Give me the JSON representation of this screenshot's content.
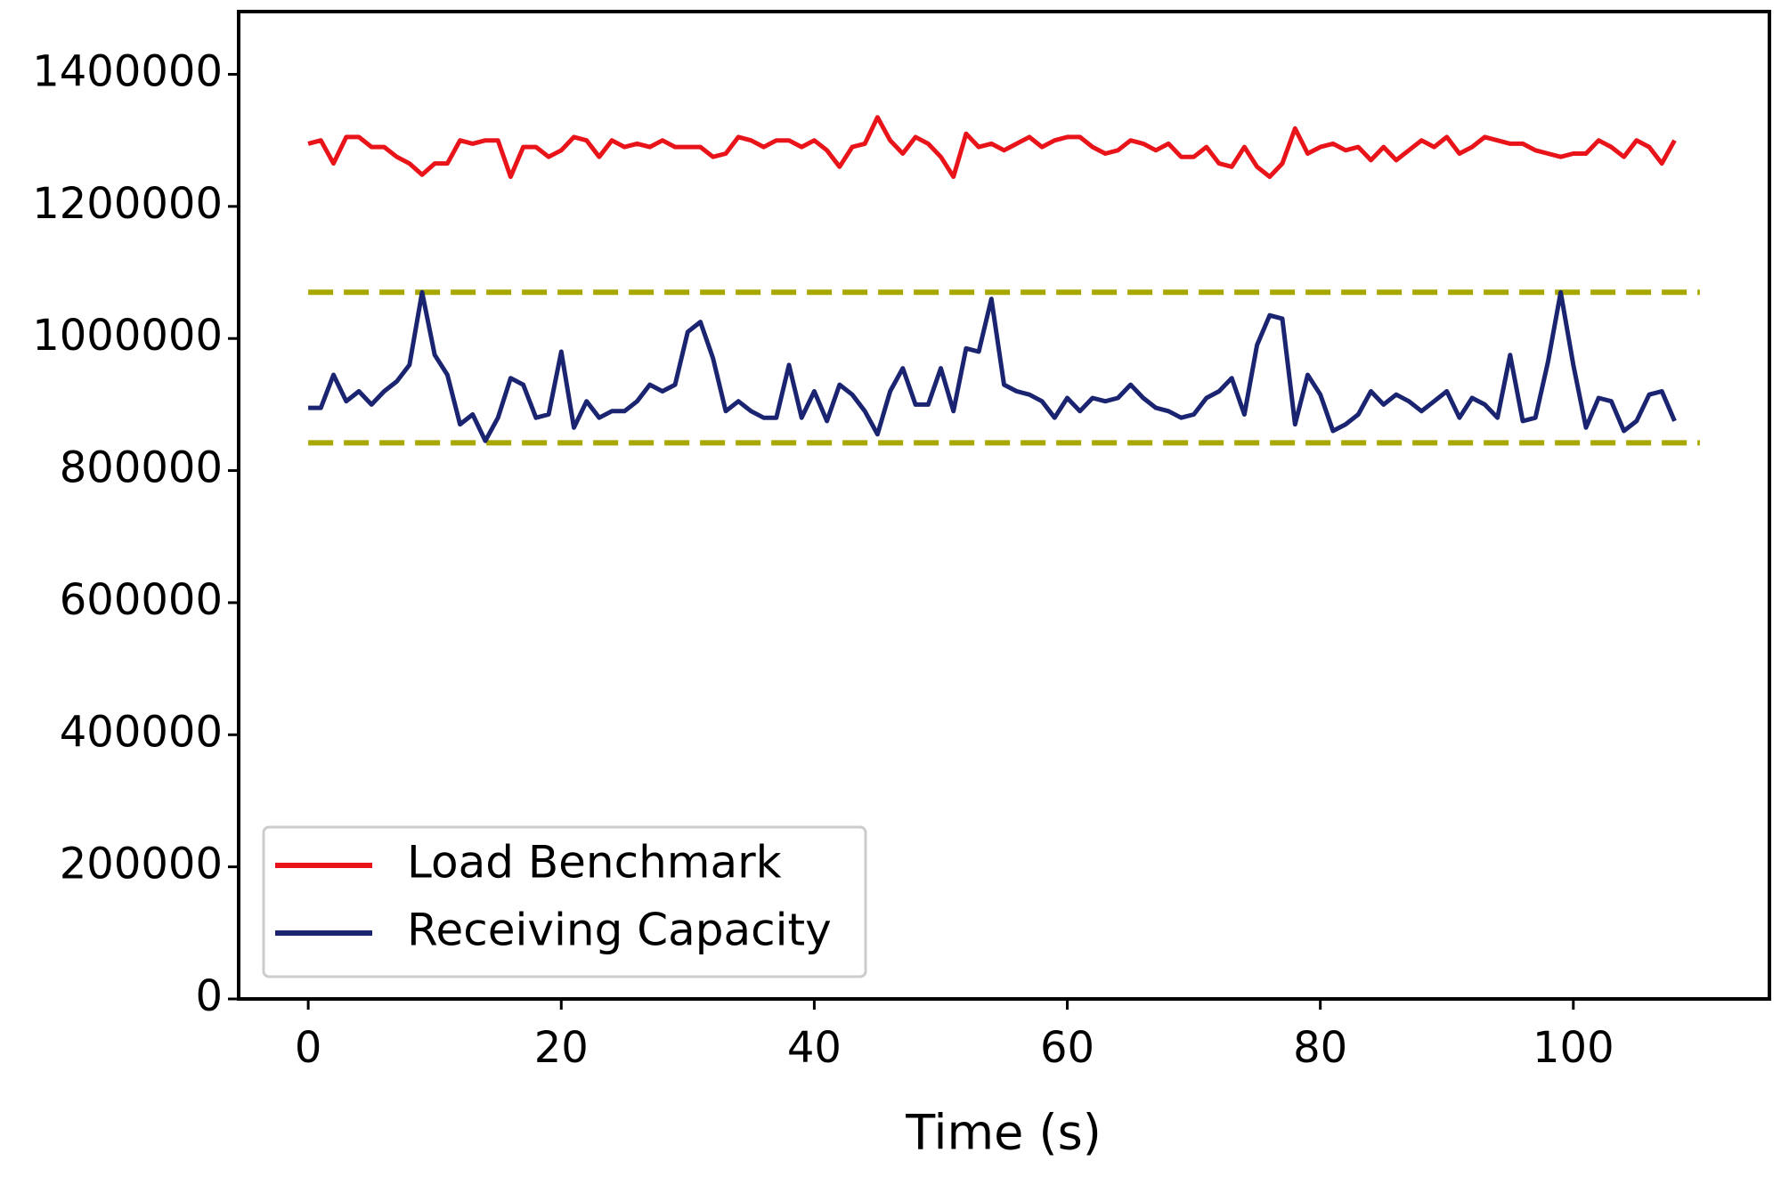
{
  "chart_data": {
    "type": "line",
    "xlabel": "Time (s)",
    "x": [
      0,
      1,
      2,
      3,
      4,
      5,
      6,
      7,
      8,
      9,
      10,
      11,
      12,
      13,
      14,
      15,
      16,
      17,
      18,
      19,
      20,
      21,
      22,
      23,
      24,
      25,
      26,
      27,
      28,
      29,
      30,
      31,
      32,
      33,
      34,
      35,
      36,
      37,
      38,
      39,
      40,
      41,
      42,
      43,
      44,
      45,
      46,
      47,
      48,
      49,
      50,
      51,
      52,
      53,
      54,
      55,
      56,
      57,
      58,
      59,
      60,
      61,
      62,
      63,
      64,
      65,
      66,
      67,
      68,
      69,
      70,
      71,
      72,
      73,
      74,
      75,
      76,
      77,
      78,
      79,
      80,
      81,
      82,
      83,
      84,
      85,
      86,
      87,
      88,
      89,
      90,
      91,
      92,
      93,
      94,
      95,
      96,
      97,
      98,
      99,
      100,
      101,
      102,
      103,
      104,
      105,
      106,
      107,
      108
    ],
    "series": [
      {
        "name": "Load Benchmark",
        "color": "#e8141a",
        "values": [
          1295000,
          1300000,
          1265000,
          1305000,
          1305000,
          1290000,
          1290000,
          1275000,
          1265000,
          1248000,
          1265000,
          1265000,
          1300000,
          1295000,
          1300000,
          1300000,
          1245000,
          1290000,
          1290000,
          1275000,
          1285000,
          1305000,
          1300000,
          1275000,
          1300000,
          1290000,
          1295000,
          1290000,
          1300000,
          1290000,
          1290000,
          1290000,
          1275000,
          1280000,
          1305000,
          1300000,
          1290000,
          1300000,
          1300000,
          1290000,
          1300000,
          1285000,
          1260000,
          1290000,
          1295000,
          1335000,
          1300000,
          1280000,
          1305000,
          1295000,
          1275000,
          1245000,
          1310000,
          1290000,
          1295000,
          1285000,
          1295000,
          1305000,
          1290000,
          1300000,
          1305000,
          1305000,
          1290000,
          1280000,
          1285000,
          1300000,
          1295000,
          1285000,
          1295000,
          1275000,
          1275000,
          1290000,
          1265000,
          1260000,
          1290000,
          1260000,
          1245000,
          1265000,
          1318000,
          1280000,
          1290000,
          1295000,
          1285000,
          1290000,
          1270000,
          1290000,
          1270000,
          1285000,
          1300000,
          1290000,
          1305000,
          1280000,
          1290000,
          1305000,
          1300000,
          1295000,
          1295000,
          1285000,
          1280000,
          1275000,
          1280000,
          1280000,
          1300000,
          1290000,
          1275000,
          1300000,
          1290000,
          1265000,
          1300000
        ]
      },
      {
        "name": "Receiving Capacity",
        "color": "#1a2470",
        "values": [
          895000,
          895000,
          945000,
          905000,
          920000,
          900000,
          920000,
          935000,
          960000,
          1070000,
          975000,
          945000,
          870000,
          885000,
          845000,
          880000,
          940000,
          930000,
          880000,
          885000,
          980000,
          865000,
          905000,
          880000,
          890000,
          890000,
          905000,
          930000,
          920000,
          930000,
          1010000,
          1025000,
          970000,
          890000,
          905000,
          890000,
          880000,
          880000,
          960000,
          880000,
          920000,
          875000,
          930000,
          915000,
          890000,
          855000,
          920000,
          955000,
          900000,
          900000,
          955000,
          890000,
          985000,
          980000,
          1060000,
          930000,
          920000,
          915000,
          905000,
          880000,
          910000,
          890000,
          910000,
          905000,
          910000,
          930000,
          910000,
          895000,
          890000,
          880000,
          885000,
          910000,
          920000,
          940000,
          885000,
          990000,
          1035000,
          1030000,
          870000,
          945000,
          915000,
          860000,
          870000,
          885000,
          920000,
          900000,
          915000,
          905000,
          890000,
          905000,
          920000,
          880000,
          910000,
          900000,
          880000,
          975000,
          875000,
          880000,
          965000,
          1070000,
          960000,
          865000,
          910000,
          905000,
          860000,
          875000,
          915000,
          920000,
          875000
        ]
      }
    ],
    "reference_lines": [
      {
        "y": 1070000,
        "x": [
          0,
          110
        ],
        "color": "#a8a800",
        "style": "dashed"
      },
      {
        "y": 842000,
        "x": [
          0,
          110
        ],
        "color": "#a8a800",
        "style": "dashed"
      }
    ],
    "xlim": [
      -5.5,
      115.5
    ],
    "ylim": [
      0,
      1495000
    ],
    "xticks": [
      0,
      20,
      40,
      60,
      80,
      100
    ],
    "yticks": [
      0,
      200000,
      400000,
      600000,
      800000,
      1000000,
      1200000,
      1400000
    ],
    "legend": "lower left"
  }
}
